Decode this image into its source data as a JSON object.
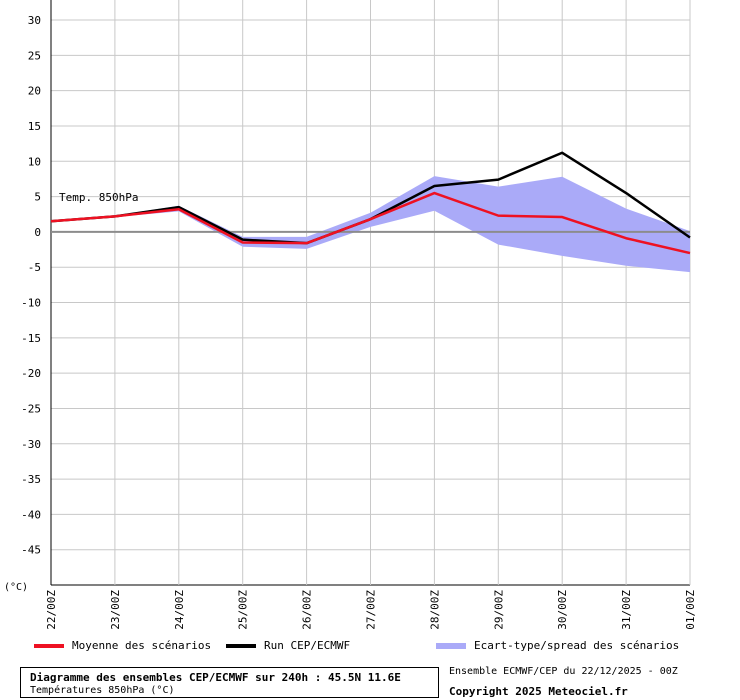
{
  "chart_data": {
    "type": "line",
    "annotation": "Temp. 850hPa",
    "unit_label": "(°C)",
    "ylim": [
      -50,
      30
    ],
    "yticks": [
      30,
      25,
      20,
      15,
      10,
      5,
      0,
      -5,
      -10,
      -15,
      -20,
      -25,
      -30,
      -35,
      -40,
      -45
    ],
    "grid": true,
    "categories": [
      "22/00Z",
      "23/00Z",
      "24/00Z",
      "25/00Z",
      "26/00Z",
      "27/00Z",
      "28/00Z",
      "29/00Z",
      "30/00Z",
      "31/00Z",
      "01/00Z"
    ],
    "series": [
      {
        "name": "Moyenne des scénarios",
        "color": "#ee1122",
        "values": [
          1.5,
          2.2,
          3.2,
          -1.5,
          -1.6,
          1.8,
          5.5,
          2.3,
          2.1,
          -0.9,
          -3.0
        ]
      },
      {
        "name": "Run CEP/ECMWF",
        "color": "#000000",
        "values": [
          1.5,
          2.2,
          3.5,
          -1.1,
          -1.6,
          1.8,
          6.5,
          7.4,
          11.2,
          5.5,
          -0.8
        ]
      }
    ],
    "spread": {
      "name": "Ecart-type/spread des scénarios",
      "color": "#aaaaf8",
      "upper": [
        1.5,
        2.3,
        3.7,
        -0.7,
        -0.7,
        2.7,
        7.9,
        6.4,
        7.8,
        3.3,
        0.1
      ],
      "lower": [
        1.5,
        2.1,
        2.9,
        -2.1,
        -2.4,
        0.7,
        3.0,
        -1.8,
        -3.4,
        -4.8,
        -5.7
      ]
    }
  },
  "legend": {
    "mean_label": "Moyenne des scénarios",
    "run_label": "Run CEP/ECMWF",
    "spread_label": "Ecart-type/spread des scénarios"
  },
  "footer": {
    "title": "Diagramme des ensembles CEP/ECMWF sur 240h : 45.5N 11.6E",
    "subtitle": "Températures 850hPa (°C)",
    "run_info": "Ensemble ECMWF/CEP du 22/12/2025 - 00Z",
    "copyright": "Copyright 2025 Meteociel.fr"
  }
}
